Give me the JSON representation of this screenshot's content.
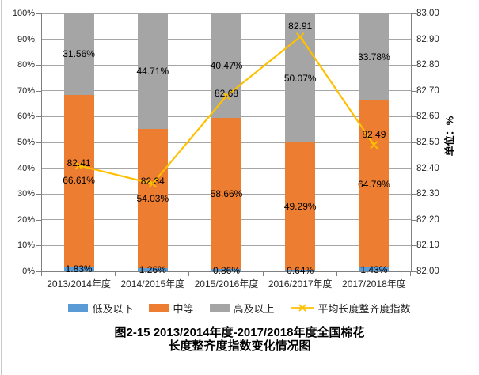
{
  "title": {
    "line1": "图2-15 2013/2014年度-2017/2018年度全国棉花",
    "line2": "长度整齐度指数变化情况图"
  },
  "chart_data": {
    "type": "bar",
    "subtype": "100%-stacked-column-with-secondary-line",
    "title": "图2-15 2013/2014年度-2017/2018年度全国棉花长度整齐度指数变化情况图",
    "categories": [
      "2013/2014年度",
      "2014/2015年度",
      "2015/2016年度",
      "2016/2017年度",
      "2017/2018年度"
    ],
    "series": [
      {
        "name": "低及以下",
        "color": "#5B9BD5",
        "values": [
          1.83,
          1.26,
          0.86,
          0.64,
          1.43
        ],
        "labels": [
          "1.83%",
          "1.26%",
          "0.86%",
          "0.64%",
          "1.43%"
        ]
      },
      {
        "name": "中等",
        "color": "#ED7D31",
        "values": [
          66.61,
          54.03,
          58.66,
          49.29,
          64.79
        ],
        "labels": [
          "66.61%",
          "54.03%",
          "58.66%",
          "49.29%",
          "64.79%"
        ]
      },
      {
        "name": "高及以上",
        "color": "#A5A5A5",
        "values": [
          31.56,
          44.71,
          40.47,
          50.07,
          33.78
        ],
        "labels": [
          "31.56%",
          "44.71%",
          "40.47%",
          "50.07%",
          "33.78%"
        ]
      }
    ],
    "line_series": {
      "name": "平均长度整齐度指数",
      "color": "#FFC000",
      "marker": "x",
      "axis": "right",
      "values": [
        82.41,
        82.34,
        82.68,
        82.91,
        82.49
      ],
      "labels": [
        "82.41",
        "82.34",
        "82.68",
        "82.91",
        "82.49"
      ],
      "label_positions": [
        "center",
        "center",
        "center",
        "above",
        "above"
      ]
    },
    "left_axis": {
      "min": 0,
      "max": 100,
      "step": 10,
      "tick_labels": [
        "100%",
        "90%",
        "80%",
        "70%",
        "60%",
        "50%",
        "40%",
        "30%",
        "20%",
        "10%",
        "0%"
      ]
    },
    "right_axis": {
      "min": 82,
      "max": 83,
      "step": 0.1,
      "title": "单位：%",
      "tick_labels": [
        "83.00",
        "82.90",
        "82.80",
        "82.70",
        "82.60",
        "82.50",
        "82.40",
        "82.30",
        "82.20",
        "82.10",
        "82.00"
      ]
    },
    "grid": true,
    "legend_position": "bottom"
  }
}
